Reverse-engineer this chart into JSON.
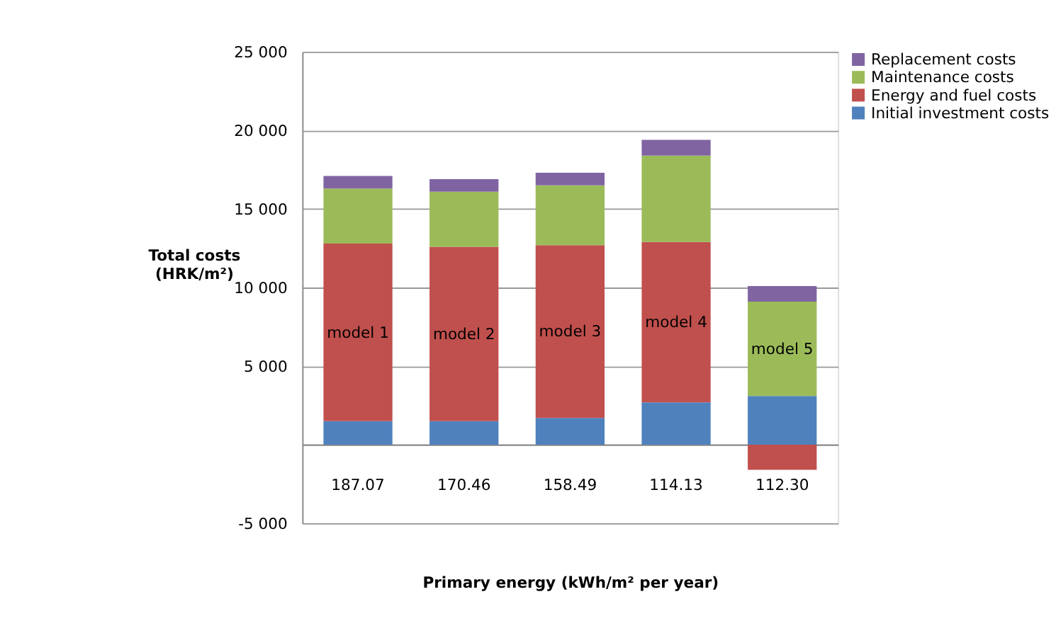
{
  "chart_data": {
    "type": "bar",
    "stacked": true,
    "categories": [
      "187.07",
      "170.46",
      "158.49",
      "114.13",
      "112.30"
    ],
    "series": [
      {
        "name": "Initial investment costs",
        "color": "#4f81bd",
        "values": [
          1500,
          1500,
          1700,
          2700,
          3100
        ]
      },
      {
        "name": "Energy and fuel costs",
        "color": "#c0504d",
        "values": [
          11300,
          11100,
          11000,
          10200,
          -1600
        ]
      },
      {
        "name": "Maintenance costs",
        "color": "#9bbb59",
        "values": [
          3500,
          3500,
          3800,
          5500,
          6000
        ]
      },
      {
        "name": "Replacement costs",
        "color": "#8064a2",
        "values": [
          800,
          800,
          800,
          1000,
          1000
        ]
      }
    ],
    "xlabel": "Primary energy (kWh/m² per year)",
    "ylabel": "Total costs (HRK/m²)",
    "ylim": [
      -5000,
      25000
    ],
    "yticks": [
      {
        "value": -5000,
        "label": "-5 000"
      },
      {
        "value": 0,
        "label": null
      },
      {
        "value": 5000,
        "label": "5 000"
      },
      {
        "value": 10000,
        "label": "10 000"
      },
      {
        "value": 15000,
        "label": "15 000"
      },
      {
        "value": 20000,
        "label": "20 000"
      },
      {
        "value": 25000,
        "label": "25 000"
      }
    ],
    "grid": "y",
    "legend": "right",
    "annotations": [
      "model 1",
      "model 2",
      "model 3",
      "model 4",
      "model 5"
    ]
  }
}
